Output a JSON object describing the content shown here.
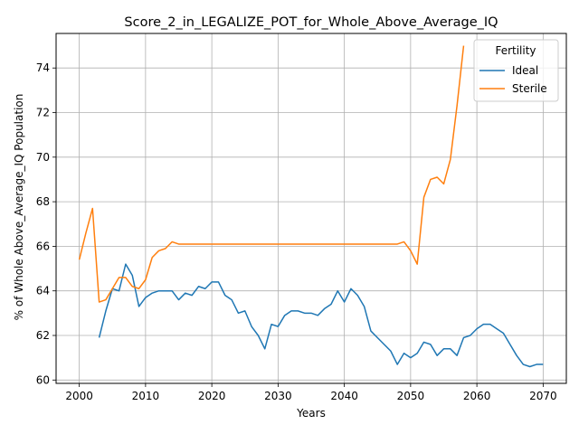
{
  "chart_data": {
    "type": "line",
    "title": "Score_2_in_LEGALIZE_POT_for_Whole_Above_Average_IQ",
    "xlabel": "Years",
    "ylabel": "% of Whole Above_Average_IQ Population",
    "xlim": [
      1996.5,
      2073.5
    ],
    "ylim": [
      59.85,
      75.55
    ],
    "xticks": [
      2000,
      2010,
      2020,
      2030,
      2040,
      2050,
      2060,
      2070
    ],
    "yticks": [
      60,
      62,
      64,
      66,
      68,
      70,
      72,
      74
    ],
    "grid": true,
    "legend": {
      "title": "Fertility",
      "placement": "top-right"
    },
    "series": [
      {
        "name": "Ideal",
        "color": "#1f77b4",
        "x": [
          2003,
          2004,
          2005,
          2006,
          2007,
          2008,
          2009,
          2010,
          2011,
          2012,
          2013,
          2014,
          2015,
          2016,
          2017,
          2018,
          2019,
          2020,
          2021,
          2022,
          2023,
          2024,
          2025,
          2026,
          2027,
          2028,
          2029,
          2030,
          2031,
          2032,
          2033,
          2034,
          2035,
          2036,
          2037,
          2038,
          2039,
          2040,
          2041,
          2042,
          2043,
          2044,
          2045,
          2046,
          2047,
          2048,
          2049,
          2050,
          2051,
          2052,
          2053,
          2054,
          2055,
          2056,
          2057,
          2058,
          2059,
          2060,
          2061,
          2062,
          2063,
          2064,
          2065,
          2066,
          2067,
          2068,
          2069,
          2070
        ],
        "y": [
          61.9,
          63.1,
          64.1,
          64.0,
          65.2,
          64.7,
          63.3,
          63.7,
          63.9,
          64.0,
          64.0,
          64.0,
          63.6,
          63.9,
          63.8,
          64.2,
          64.1,
          64.4,
          64.4,
          63.8,
          63.6,
          63.0,
          63.1,
          62.4,
          62.0,
          61.4,
          62.5,
          62.4,
          62.9,
          63.1,
          63.1,
          63.0,
          63.0,
          62.9,
          63.2,
          63.4,
          64.0,
          63.5,
          64.1,
          63.8,
          63.3,
          62.2,
          61.9,
          61.6,
          61.3,
          60.7,
          61.2,
          61.0,
          61.2,
          61.7,
          61.6,
          61.1,
          61.4,
          61.4,
          61.1,
          61.9,
          62.0,
          62.3,
          62.5,
          62.5,
          62.3,
          62.1,
          61.6,
          61.1,
          60.7,
          60.6,
          60.7,
          60.7
        ]
      },
      {
        "name": "Sterile",
        "color": "#ff7f0e",
        "x": [
          2000,
          2001,
          2002,
          2003,
          2004,
          2005,
          2006,
          2007,
          2008,
          2009,
          2010,
          2011,
          2012,
          2013,
          2014,
          2015,
          2016,
          2017,
          2018,
          2019,
          2020,
          2021,
          2022,
          2023,
          2024,
          2025,
          2026,
          2027,
          2028,
          2029,
          2030,
          2031,
          2032,
          2033,
          2034,
          2035,
          2036,
          2037,
          2038,
          2039,
          2040,
          2041,
          2042,
          2043,
          2044,
          2045,
          2046,
          2047,
          2048,
          2049,
          2050,
          2051,
          2052,
          2053,
          2054,
          2055,
          2056,
          2057,
          2058
        ],
        "y": [
          65.4,
          66.6,
          67.7,
          63.5,
          63.6,
          64.1,
          64.6,
          64.6,
          64.2,
          64.1,
          64.5,
          65.5,
          65.8,
          65.9,
          66.2,
          66.1,
          66.1,
          66.1,
          66.1,
          66.1,
          66.1,
          66.1,
          66.1,
          66.1,
          66.1,
          66.1,
          66.1,
          66.1,
          66.1,
          66.1,
          66.1,
          66.1,
          66.1,
          66.1,
          66.1,
          66.1,
          66.1,
          66.1,
          66.1,
          66.1,
          66.1,
          66.1,
          66.1,
          66.1,
          66.1,
          66.1,
          66.1,
          66.1,
          66.1,
          66.2,
          65.8,
          65.2,
          68.2,
          69.0,
          69.1,
          68.8,
          69.9,
          72.3,
          75.0
        ]
      }
    ]
  }
}
